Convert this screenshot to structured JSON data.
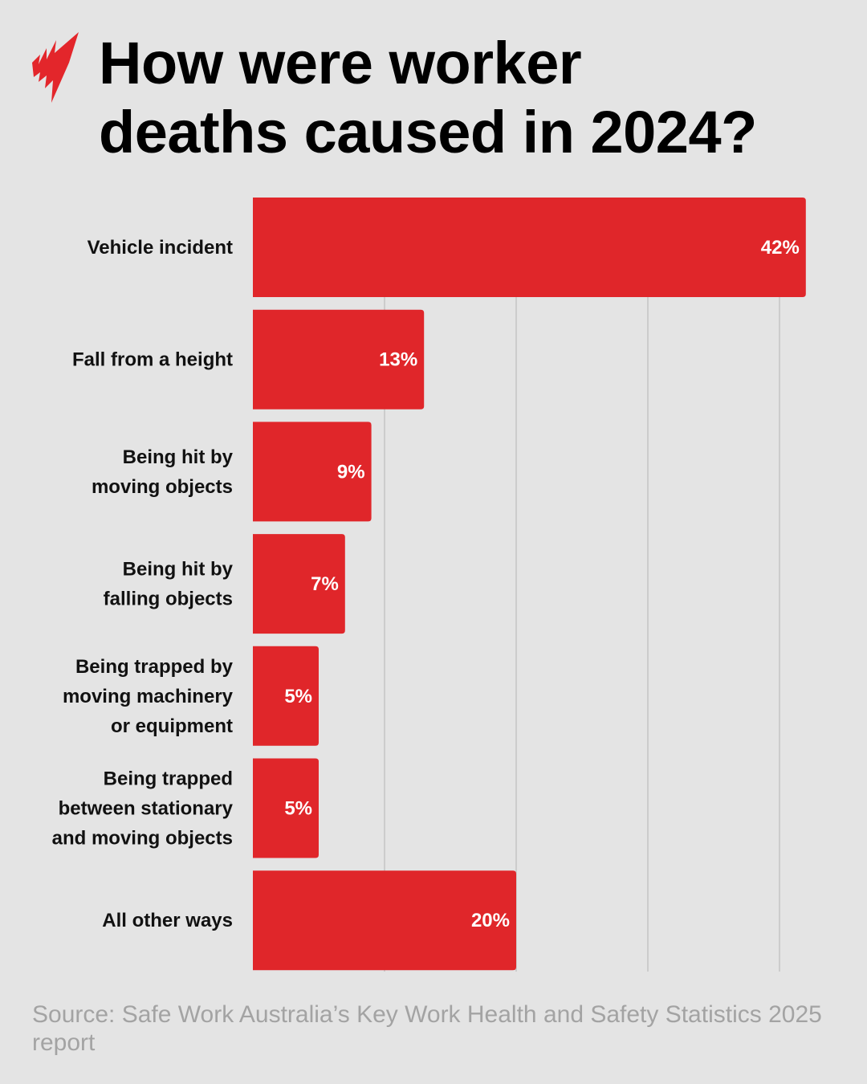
{
  "title_lines": [
    "How were worker",
    "deaths caused in 2024?"
  ],
  "logo": {
    "name": "SBS logo",
    "color": "#e3262b"
  },
  "source": "Source: Safe Work Australia’s Key Work Health and Safety Statistics 2025 report",
  "chart_data": {
    "type": "bar",
    "orientation": "horizontal",
    "title": "How were worker deaths caused in 2024?",
    "categories": [
      [
        "Vehicle incident"
      ],
      [
        "Fall from a height"
      ],
      [
        "Being hit by",
        "moving objects"
      ],
      [
        "Being hit by",
        "falling objects"
      ],
      [
        "Being trapped by",
        "moving machinery",
        "or equipment"
      ],
      [
        "Being trapped",
        "between stationary",
        "and moving objects"
      ],
      [
        "All other ways"
      ]
    ],
    "values": [
      42,
      13,
      9,
      7,
      5,
      5,
      20
    ],
    "value_labels": [
      "42%",
      "13%",
      "9%",
      "7%",
      "5%",
      "5%",
      "20%"
    ],
    "unit": "%",
    "xlim": [
      0,
      42
    ],
    "gridlines": [
      10,
      20,
      30,
      40
    ],
    "grid": true,
    "bar_color": "#e0262a",
    "background": "#e4e4e4"
  }
}
